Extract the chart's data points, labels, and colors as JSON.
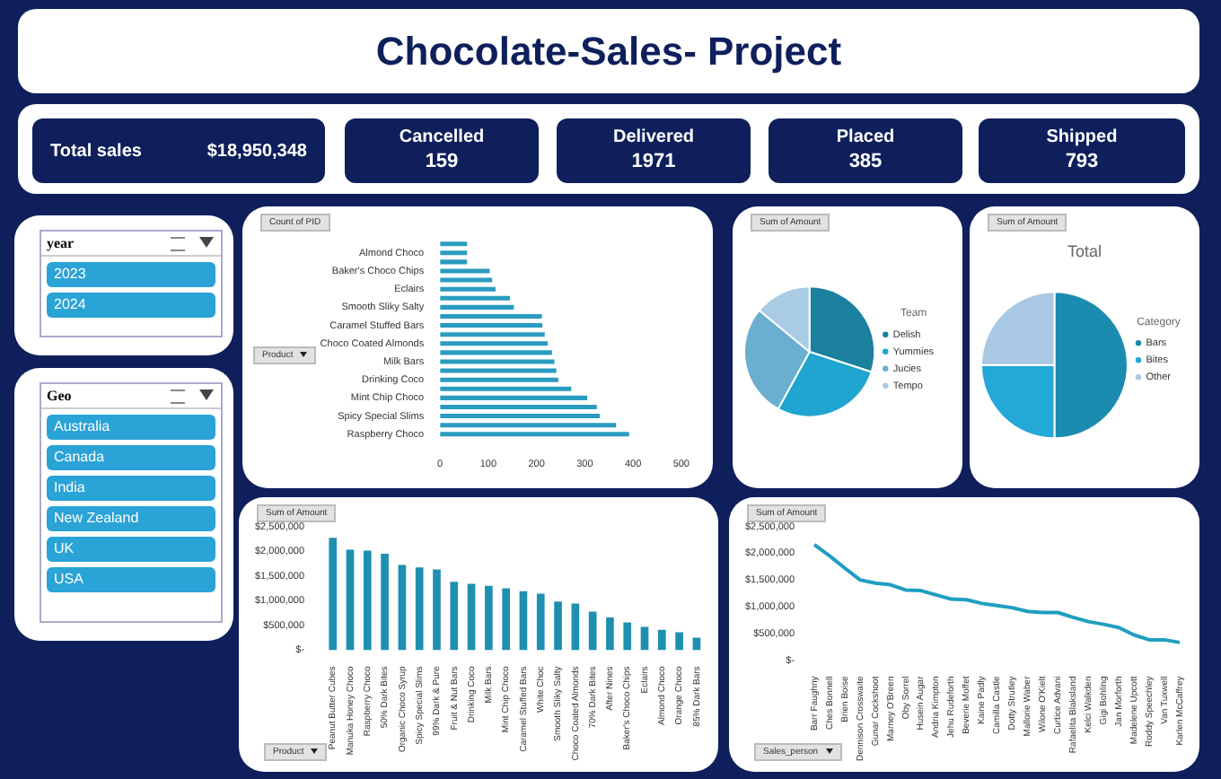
{
  "chart_data": [
    {
      "type": "other",
      "title": "Chocolate-Sales- Project",
      "annotations": [
        "Total sales",
        "$18,950,348",
        "Cancelled",
        "159",
        "Delivered",
        "1971",
        "Placed",
        "385",
        "Shipped",
        "793"
      ]
    },
    {
      "type": "other",
      "title": "year",
      "annotations": [
        "2023",
        "2024"
      ]
    },
    {
      "type": "other",
      "title": "Geo",
      "annotations": [
        "Australia",
        "Canada",
        "India",
        "New Zealand",
        "UK",
        "USA"
      ]
    },
    {
      "type": "bar",
      "orientation": "horizontal",
      "annotations": [
        "Count of PID"
      ],
      "ylabel": "Product",
      "color": "#2a9cc0",
      "categories": [
        null,
        "Almond Choco",
        null,
        "Baker's Choco Chips",
        null,
        "Eclairs",
        null,
        "Smooth Sliky Salty",
        null,
        "Caramel Stuffed Bars",
        null,
        "Choco Coated Almonds",
        null,
        "Milk Bars",
        null,
        "Drinking Coco",
        null,
        "Mint Chip Choco",
        null,
        "Spicy Special Slims",
        null,
        "Raspberry Choco"
      ],
      "values": [
        56,
        56,
        56,
        103,
        108,
        115,
        145,
        153,
        211,
        212,
        217,
        223,
        232,
        237,
        241,
        245,
        272,
        305,
        325,
        331,
        365,
        392
      ],
      "xlim": [
        0,
        500
      ],
      "xticks": [
        0,
        100,
        200,
        300,
        400,
        500
      ]
    },
    {
      "type": "pie",
      "annotations": [
        "Sum of Amount"
      ],
      "legend": "right",
      "legend_title": "Team",
      "categories": [
        "Delish",
        "Yummies",
        "Jucies",
        "Tempo"
      ],
      "values": [
        30,
        28,
        28,
        14
      ],
      "colors": [
        "#1b7f9e",
        "#1fa5cf",
        "#6aaed0",
        "#a9cbe3"
      ]
    },
    {
      "type": "pie",
      "title": "Total",
      "annotations": [
        "Sum of Amount"
      ],
      "legend": "right",
      "legend_title": "Category",
      "categories": [
        "Bars",
        "Bites",
        "Other"
      ],
      "values": [
        50,
        25,
        25
      ],
      "colors": [
        "#1b8bb0",
        "#23a8d8",
        "#a8c8e3"
      ]
    },
    {
      "type": "bar",
      "annotations": [
        "Sum of Amount"
      ],
      "xlabel": "Product",
      "color": "#1f8fb0",
      "categories": [
        "Peanut Butter Cubes",
        "Manuka Honey Choco",
        "Raspberry Choco",
        "50% Dark Bites",
        "Organic Choco Syrup",
        "Spicy Special Slims",
        "99% Dark & Pure",
        "Fruit & Nut Bars",
        "Drinking Coco",
        "Milk Bars",
        "Mint Chip Choco",
        "Caramel Stuffed Bars",
        "White Choc",
        "Smooth Sliky Salty",
        "Choco Coated Almonds",
        "70% Dark Bites",
        "After Nines",
        "Baker's Choco Chips",
        "Eclairs",
        "Almond Choco",
        "Orange Choco",
        "85% Dark Bars"
      ],
      "values": [
        2270000,
        2030000,
        2010000,
        1950000,
        1720000,
        1670000,
        1630000,
        1380000,
        1340000,
        1300000,
        1250000,
        1190000,
        1140000,
        980000,
        940000,
        780000,
        660000,
        560000,
        470000,
        410000,
        360000,
        250000
      ],
      "ylim": [
        0,
        2500000
      ],
      "yticks": [
        {
          "value": 0,
          "label": "$-"
        },
        {
          "value": 500000,
          "label": "$500,000"
        },
        {
          "value": 1000000,
          "label": "$1,000,000"
        },
        {
          "value": 1500000,
          "label": "$1,500,000"
        },
        {
          "value": 2000000,
          "label": "$2,000,000"
        },
        {
          "value": 2500000,
          "label": "$2,500,000"
        }
      ]
    },
    {
      "type": "line",
      "annotations": [
        "Sum of Amount"
      ],
      "xlabel": "Sales_person",
      "color": "#1f9ec0",
      "marker": "none",
      "categories": [
        "Barr Faughny",
        "Ches Bonnell",
        "Brien Boise",
        "Dennison Crosswaite",
        "Gunar Cockshoot",
        "Marney O'Breen",
        "Oby Sorrel",
        "Husein Augar",
        "Andria Kimpton",
        "Jehu Rudeforth",
        "Beverie Moffet",
        "Kaine Padly",
        "Camilla Castle",
        "Dotty Strutley",
        "Mallorie Waber",
        "Wilone O'Kielt",
        "Curtice Advani",
        "Rafaelita Blaksland",
        "Kelci Walkden",
        "Gigi Bohling",
        "Jan Morforth",
        "Madelene Upcott",
        "Roddy Speechley",
        "Van Tuxwell",
        "Karlen McCaffrey"
      ],
      "values": [
        2160000,
        1950000,
        1720000,
        1500000,
        1440000,
        1410000,
        1310000,
        1300000,
        1220000,
        1140000,
        1130000,
        1060000,
        1020000,
        980000,
        910000,
        890000,
        890000,
        800000,
        720000,
        670000,
        610000,
        470000,
        380000,
        380000,
        330000
      ],
      "ylim": [
        0,
        2500000
      ],
      "yticks": [
        {
          "value": 0,
          "label": "$-"
        },
        {
          "value": 500000,
          "label": "$500,000"
        },
        {
          "value": 1000000,
          "label": "$1,000,000"
        },
        {
          "value": 1500000,
          "label": "$1,500,000"
        },
        {
          "value": 2000000,
          "label": "$2,000,000"
        },
        {
          "value": 2500000,
          "label": "$2,500,000"
        }
      ]
    }
  ]
}
